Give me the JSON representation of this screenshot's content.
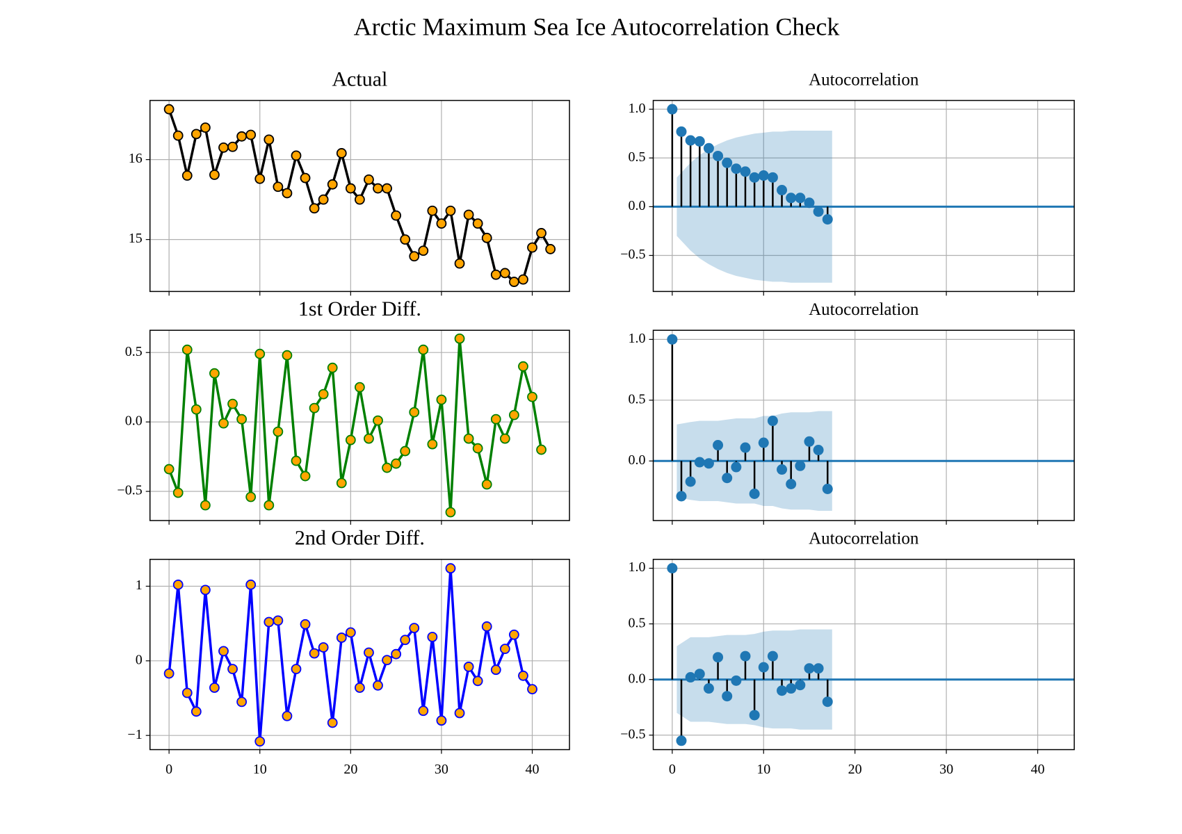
{
  "title": "Arctic Maximum Sea Ice Autocorrelation Check",
  "chart_data": [
    {
      "type": "line",
      "title": "Actual",
      "x": [
        0,
        1,
        2,
        3,
        4,
        5,
        6,
        7,
        8,
        9,
        10,
        11,
        12,
        13,
        14,
        15,
        16,
        17,
        18,
        19,
        20,
        21,
        22,
        23,
        24,
        25,
        26,
        27,
        28,
        29,
        30,
        31,
        32,
        33,
        34,
        35,
        36,
        37,
        38,
        39,
        40,
        41,
        42
      ],
      "values": [
        16.63,
        16.3,
        15.8,
        16.32,
        16.4,
        15.81,
        16.15,
        16.16,
        16.29,
        16.31,
        15.76,
        16.25,
        15.66,
        15.58,
        16.05,
        15.77,
        15.39,
        15.5,
        15.69,
        16.08,
        15.64,
        15.5,
        15.75,
        15.64,
        15.64,
        15.3,
        15.0,
        14.79,
        14.86,
        15.36,
        15.2,
        15.36,
        14.7,
        15.31,
        15.2,
        15.02,
        14.56,
        14.58,
        14.47,
        14.5,
        14.9,
        15.08,
        14.88
      ],
      "color": "#000000",
      "marker_color": "#ffa500",
      "xlim": [
        -2.1,
        44.1
      ],
      "xticks": [
        0,
        10,
        20,
        30,
        40
      ],
      "ylim": [
        14.35,
        16.74
      ],
      "yticks": [
        15,
        16
      ],
      "grid": true
    },
    {
      "type": "acf",
      "title": "Autocorrelation",
      "lags": [
        0,
        1,
        2,
        3,
        4,
        5,
        6,
        7,
        8,
        9,
        10,
        11,
        12,
        13,
        14,
        15,
        16,
        17
      ],
      "values": [
        1.0,
        0.77,
        0.68,
        0.67,
        0.6,
        0.52,
        0.45,
        0.39,
        0.36,
        0.3,
        0.32,
        0.3,
        0.17,
        0.09,
        0.09,
        0.04,
        -0.05,
        -0.13
      ],
      "band_lags": [
        1,
        2,
        3,
        4,
        5,
        6,
        7,
        8,
        9,
        10,
        11,
        12,
        13,
        14,
        15,
        16,
        17
      ],
      "band": [
        0.3,
        0.45,
        0.53,
        0.59,
        0.64,
        0.68,
        0.71,
        0.73,
        0.75,
        0.76,
        0.77,
        0.77,
        0.78,
        0.78,
        0.78,
        0.78,
        0.78
      ],
      "color": "#1f77b4",
      "stem_color": "#000000",
      "xlim": [
        -2.08,
        44.0
      ],
      "xticks": [
        0,
        10,
        20,
        30,
        40
      ],
      "ylim": [
        -0.87,
        1.09
      ],
      "yticks": [
        {
          "value": -0.5,
          "label": "−0.5"
        },
        {
          "value": 0,
          "label": "0.0"
        },
        0.5,
        {
          "value": 1,
          "label": "1.0"
        }
      ],
      "grid": true
    },
    {
      "type": "line",
      "title": "1st Order Diff.",
      "x": [
        0,
        1,
        2,
        3,
        4,
        5,
        6,
        7,
        8,
        9,
        10,
        11,
        12,
        13,
        14,
        15,
        16,
        17,
        18,
        19,
        20,
        21,
        22,
        23,
        24,
        25,
        26,
        27,
        28,
        29,
        30,
        31,
        32,
        33,
        34,
        35,
        36,
        37,
        38,
        39,
        40,
        41
      ],
      "values": [
        -0.34,
        -0.51,
        0.52,
        0.09,
        -0.6,
        0.35,
        -0.01,
        0.13,
        0.02,
        -0.54,
        0.49,
        -0.6,
        -0.07,
        0.48,
        -0.28,
        -0.39,
        0.1,
        0.2,
        0.39,
        -0.44,
        -0.13,
        0.25,
        -0.12,
        0.01,
        -0.33,
        -0.3,
        -0.21,
        0.07,
        0.52,
        -0.16,
        0.16,
        -0.65,
        0.6,
        -0.12,
        -0.19,
        -0.45,
        0.02,
        -0.12,
        0.05,
        0.4,
        0.18,
        -0.2
      ],
      "color": "#008000",
      "marker_color": "#ffa500",
      "xlim": [
        -2.1,
        44.1
      ],
      "xticks": [
        0,
        10,
        20,
        30,
        40
      ],
      "ylim": [
        -0.71,
        0.66
      ],
      "yticks": [
        {
          "value": -0.5,
          "label": "−0.5"
        },
        {
          "value": 0,
          "label": "0.0"
        },
        0.5
      ],
      "grid": true
    },
    {
      "type": "acf",
      "title": "Autocorrelation",
      "lags": [
        0,
        1,
        2,
        3,
        4,
        5,
        6,
        7,
        8,
        9,
        10,
        11,
        12,
        13,
        14,
        15,
        16,
        17
      ],
      "values": [
        1.0,
        -0.29,
        -0.17,
        -0.01,
        -0.02,
        0.13,
        -0.14,
        -0.05,
        0.11,
        -0.27,
        0.15,
        0.33,
        -0.07,
        -0.19,
        -0.04,
        0.16,
        0.09,
        -0.23
      ],
      "band_lags": [
        1,
        2,
        3,
        4,
        5,
        6,
        7,
        8,
        9,
        10,
        11,
        12,
        13,
        14,
        15,
        16,
        17
      ],
      "band": [
        0.3,
        0.32,
        0.33,
        0.33,
        0.33,
        0.34,
        0.35,
        0.35,
        0.35,
        0.37,
        0.37,
        0.39,
        0.4,
        0.4,
        0.4,
        0.41,
        0.41
      ],
      "color": "#1f77b4",
      "stem_color": "#000000",
      "xlim": [
        -2.08,
        44.0
      ],
      "xticks": [
        0,
        10,
        20,
        30,
        40
      ],
      "ylim": [
        -0.49,
        1.075
      ],
      "yticks": [
        {
          "value": 0,
          "label": "0.0"
        },
        0.5,
        {
          "value": 1,
          "label": "1.0"
        }
      ],
      "grid": true
    },
    {
      "type": "line",
      "title": "2nd Order Diff.",
      "x": [
        0,
        1,
        2,
        3,
        4,
        5,
        6,
        7,
        8,
        9,
        10,
        11,
        12,
        13,
        14,
        15,
        16,
        17,
        18,
        19,
        20,
        21,
        22,
        23,
        24,
        25,
        26,
        27,
        28,
        29,
        30,
        31,
        32,
        33,
        34,
        35,
        36,
        37,
        38,
        39,
        40
      ],
      "values": [
        -0.17,
        1.02,
        -0.43,
        -0.68,
        0.95,
        -0.36,
        0.13,
        -0.11,
        -0.55,
        1.02,
        -1.08,
        0.52,
        0.54,
        -0.74,
        -0.11,
        0.49,
        0.1,
        0.18,
        -0.83,
        0.31,
        0.38,
        -0.36,
        0.11,
        -0.33,
        0.01,
        0.09,
        0.28,
        0.44,
        -0.67,
        0.32,
        -0.8,
        1.24,
        -0.7,
        -0.08,
        -0.27,
        0.46,
        -0.12,
        0.16,
        0.35,
        -0.2,
        -0.38
      ],
      "color": "#0000ff",
      "marker_color": "#ffa500",
      "xlim": [
        -2.1,
        44.1
      ],
      "xticks": [
        0,
        10,
        20,
        30,
        40
      ],
      "ylim": [
        -1.19,
        1.36
      ],
      "yticks": [
        {
          "value": -1,
          "label": "−1"
        },
        0,
        1
      ],
      "grid": true
    },
    {
      "type": "acf",
      "title": "Autocorrelation",
      "lags": [
        0,
        1,
        2,
        3,
        4,
        5,
        6,
        7,
        8,
        9,
        10,
        11,
        12,
        13,
        14,
        15,
        16,
        17
      ],
      "values": [
        1.0,
        -0.55,
        0.02,
        0.05,
        -0.08,
        0.2,
        -0.15,
        -0.01,
        0.21,
        -0.32,
        0.11,
        0.21,
        -0.1,
        -0.08,
        -0.05,
        0.1,
        0.1,
        -0.2
      ],
      "band_lags": [
        1,
        2,
        3,
        4,
        5,
        6,
        7,
        8,
        9,
        10,
        11,
        12,
        13,
        14,
        15,
        16,
        17
      ],
      "band": [
        0.3,
        0.38,
        0.38,
        0.38,
        0.39,
        0.4,
        0.4,
        0.4,
        0.41,
        0.43,
        0.44,
        0.44,
        0.44,
        0.45,
        0.45,
        0.45,
        0.45
      ],
      "color": "#1f77b4",
      "stem_color": "#000000",
      "xlim": [
        -2.08,
        44.0
      ],
      "xticks": [
        0,
        10,
        20,
        30,
        40
      ],
      "ylim": [
        -0.63,
        1.08
      ],
      "yticks": [
        {
          "value": -0.5,
          "label": "−0.5"
        },
        {
          "value": 0,
          "label": "0.0"
        },
        0.5,
        {
          "value": 1,
          "label": "1.0"
        }
      ],
      "grid": true
    }
  ]
}
